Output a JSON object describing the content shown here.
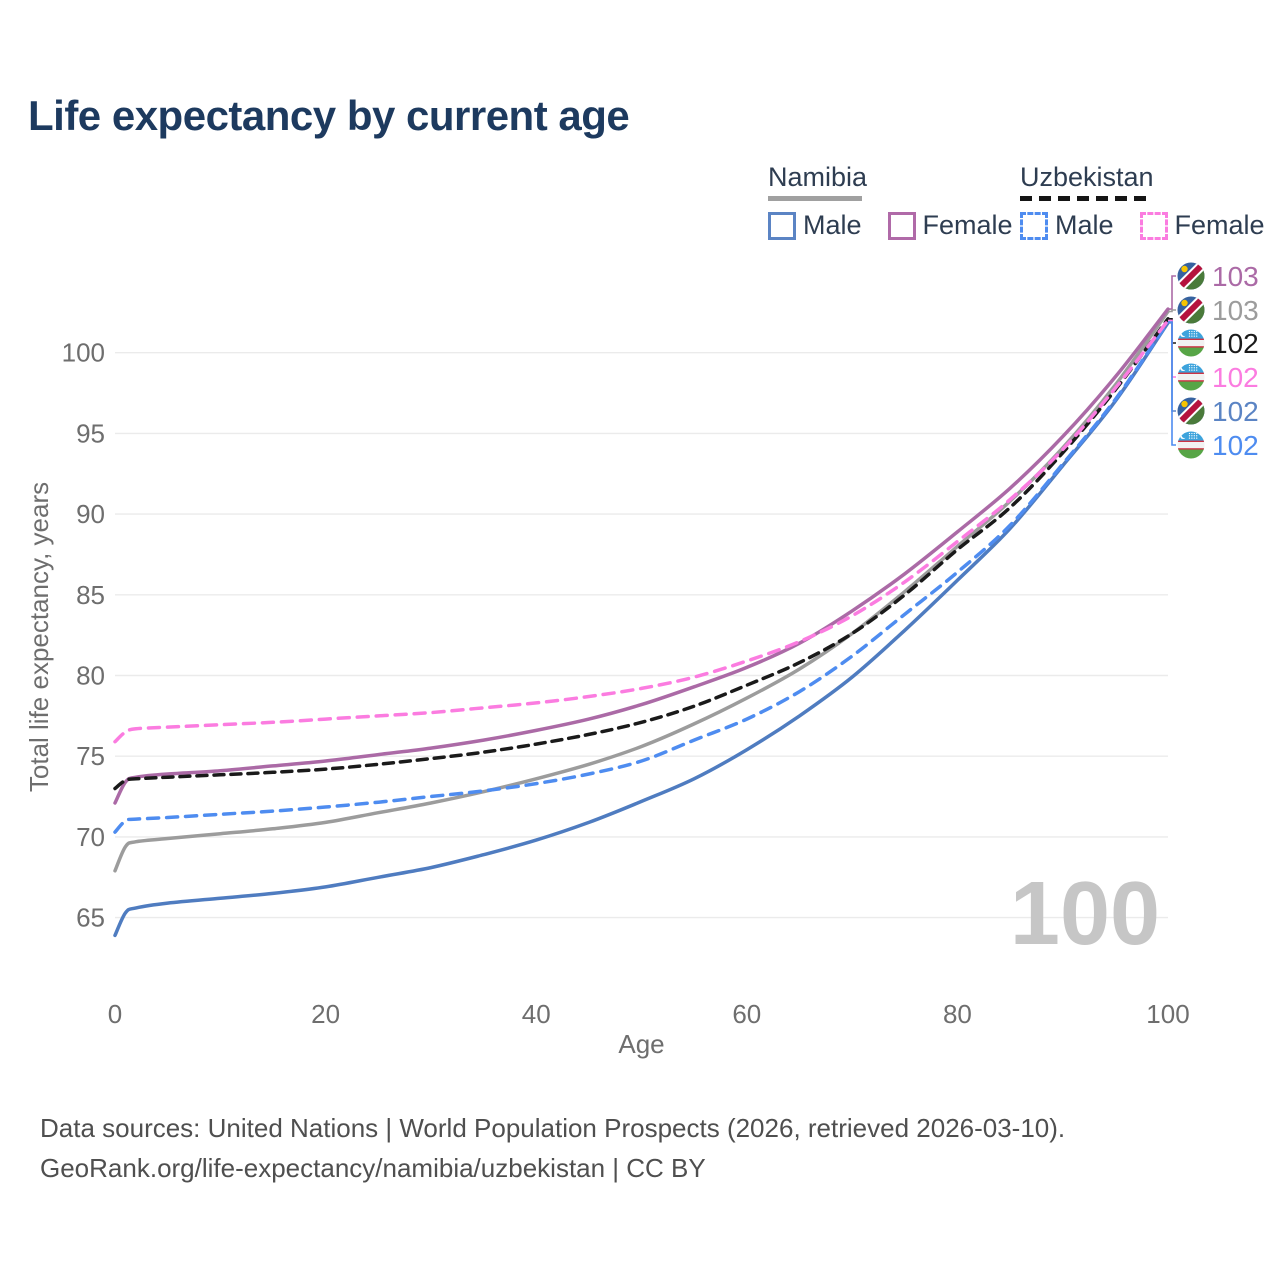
{
  "title": "Life expectancy by current age",
  "legend": {
    "groups": [
      {
        "country": "Namibia",
        "line_style": "solid",
        "underline_color": "#a0a0a0",
        "items": [
          {
            "label": "Male",
            "color": "#5b84c4"
          },
          {
            "label": "Female",
            "color": "#b06aa8"
          }
        ]
      },
      {
        "country": "Uzbekistan",
        "line_style": "dashed",
        "underline_color": "#151515",
        "items": [
          {
            "label": "Male",
            "color": "#4e8cf0"
          },
          {
            "label": "Female",
            "color": "#fb7ce0"
          }
        ]
      }
    ]
  },
  "watermark": "100",
  "footer": {
    "line1": "Data sources: United Nations | World Population Prospects (2026, retrieved 2026-03-10).",
    "line2": "GeoRank.org/life-expectancy/namibia/uzbekistan | CC BY"
  },
  "end_labels": [
    {
      "series": "namibia-female",
      "value": "103",
      "color": "#ab6aa6",
      "flag": "namibia"
    },
    {
      "series": "namibia-total",
      "value": "103",
      "color": "#9c9c9c",
      "flag": "namibia"
    },
    {
      "series": "uzbekistan-total",
      "value": "102",
      "color": "#1a1a1a",
      "flag": "uzbekistan"
    },
    {
      "series": "uzbekistan-female",
      "value": "102",
      "color": "#fb7ce0",
      "flag": "uzbekistan"
    },
    {
      "series": "namibia-male",
      "value": "102",
      "color": "#5b84c4",
      "flag": "namibia"
    },
    {
      "series": "uzbekistan-male",
      "value": "102",
      "color": "#4e8cf0",
      "flag": "uzbekistan"
    }
  ],
  "chart_data": {
    "type": "line",
    "title": "Life expectancy by current age",
    "xlabel": "Age",
    "ylabel": "Total life expectancy, years",
    "x_ticks": [
      0,
      20,
      40,
      60,
      80,
      100
    ],
    "y_ticks": [
      65,
      70,
      75,
      80,
      85,
      90,
      95,
      100
    ],
    "xlim": [
      0,
      100
    ],
    "ylim": [
      63,
      103.5
    ],
    "grid": "horizontal",
    "legend_position": "top-right",
    "x": [
      0,
      1,
      2,
      5,
      10,
      15,
      20,
      25,
      30,
      35,
      40,
      45,
      50,
      55,
      60,
      65,
      70,
      75,
      80,
      85,
      90,
      95,
      100
    ],
    "series": [
      {
        "id": "namibia-male",
        "name": "Namibia Male",
        "country": "Namibia",
        "sex": "Male",
        "color": "#4f7cc0",
        "dash": "solid",
        "end_value": 102,
        "values": [
          63.9,
          65.3,
          65.6,
          65.9,
          66.2,
          66.5,
          66.9,
          67.5,
          68.1,
          68.9,
          69.8,
          70.9,
          72.2,
          73.6,
          75.4,
          77.5,
          79.9,
          82.8,
          85.9,
          89.1,
          93.0,
          97.0,
          101.85
        ]
      },
      {
        "id": "namibia-total",
        "name": "Namibia Both sexes",
        "country": "Namibia",
        "sex": "Both",
        "color": "#9c9c9c",
        "dash": "solid",
        "end_value": 103,
        "values": [
          67.9,
          69.4,
          69.7,
          69.9,
          70.2,
          70.5,
          70.9,
          71.5,
          72.1,
          72.8,
          73.6,
          74.5,
          75.6,
          77.0,
          78.6,
          80.4,
          82.6,
          85.2,
          88.0,
          90.8,
          94.1,
          98.0,
          102.55
        ]
      },
      {
        "id": "namibia-female",
        "name": "Namibia Female",
        "country": "Namibia",
        "sex": "Female",
        "color": "#ab6aa6",
        "dash": "solid",
        "end_value": 103,
        "values": [
          72.1,
          73.4,
          73.7,
          73.9,
          74.1,
          74.4,
          74.7,
          75.1,
          75.5,
          76.0,
          76.6,
          77.3,
          78.2,
          79.3,
          80.5,
          82.0,
          84.0,
          86.3,
          88.9,
          91.6,
          94.8,
          98.5,
          102.7
        ]
      },
      {
        "id": "uzbekistan-male",
        "name": "Uzbekistan Male",
        "country": "Uzbekistan",
        "sex": "Male",
        "color": "#4e8cf0",
        "dash": "dashed",
        "end_value": 102,
        "values": [
          70.3,
          71.0,
          71.1,
          71.2,
          71.4,
          71.6,
          71.85,
          72.15,
          72.5,
          72.85,
          73.3,
          73.9,
          74.7,
          76.0,
          77.3,
          79.0,
          81.2,
          83.8,
          86.4,
          89.3,
          93.1,
          97.1,
          101.9
        ]
      },
      {
        "id": "uzbekistan-total",
        "name": "Uzbekistan Both sexes",
        "country": "Uzbekistan",
        "sex": "Both",
        "color": "#1a1a1a",
        "dash": "dashed",
        "end_value": 102,
        "values": [
          73.0,
          73.5,
          73.6,
          73.7,
          73.85,
          74.0,
          74.2,
          74.5,
          74.85,
          75.25,
          75.75,
          76.35,
          77.1,
          78.1,
          79.4,
          80.8,
          82.6,
          85.0,
          87.8,
          90.4,
          93.8,
          97.7,
          102.1
        ]
      },
      {
        "id": "uzbekistan-female",
        "name": "Uzbekistan Female",
        "country": "Uzbekistan",
        "sex": "Female",
        "color": "#fb7ce0",
        "dash": "dashed",
        "end_value": 102,
        "values": [
          75.9,
          76.5,
          76.7,
          76.8,
          76.95,
          77.1,
          77.3,
          77.5,
          77.7,
          78.0,
          78.3,
          78.7,
          79.2,
          79.9,
          80.9,
          82.1,
          83.7,
          85.8,
          88.3,
          90.9,
          94.0,
          97.8,
          102.0
        ]
      }
    ]
  }
}
